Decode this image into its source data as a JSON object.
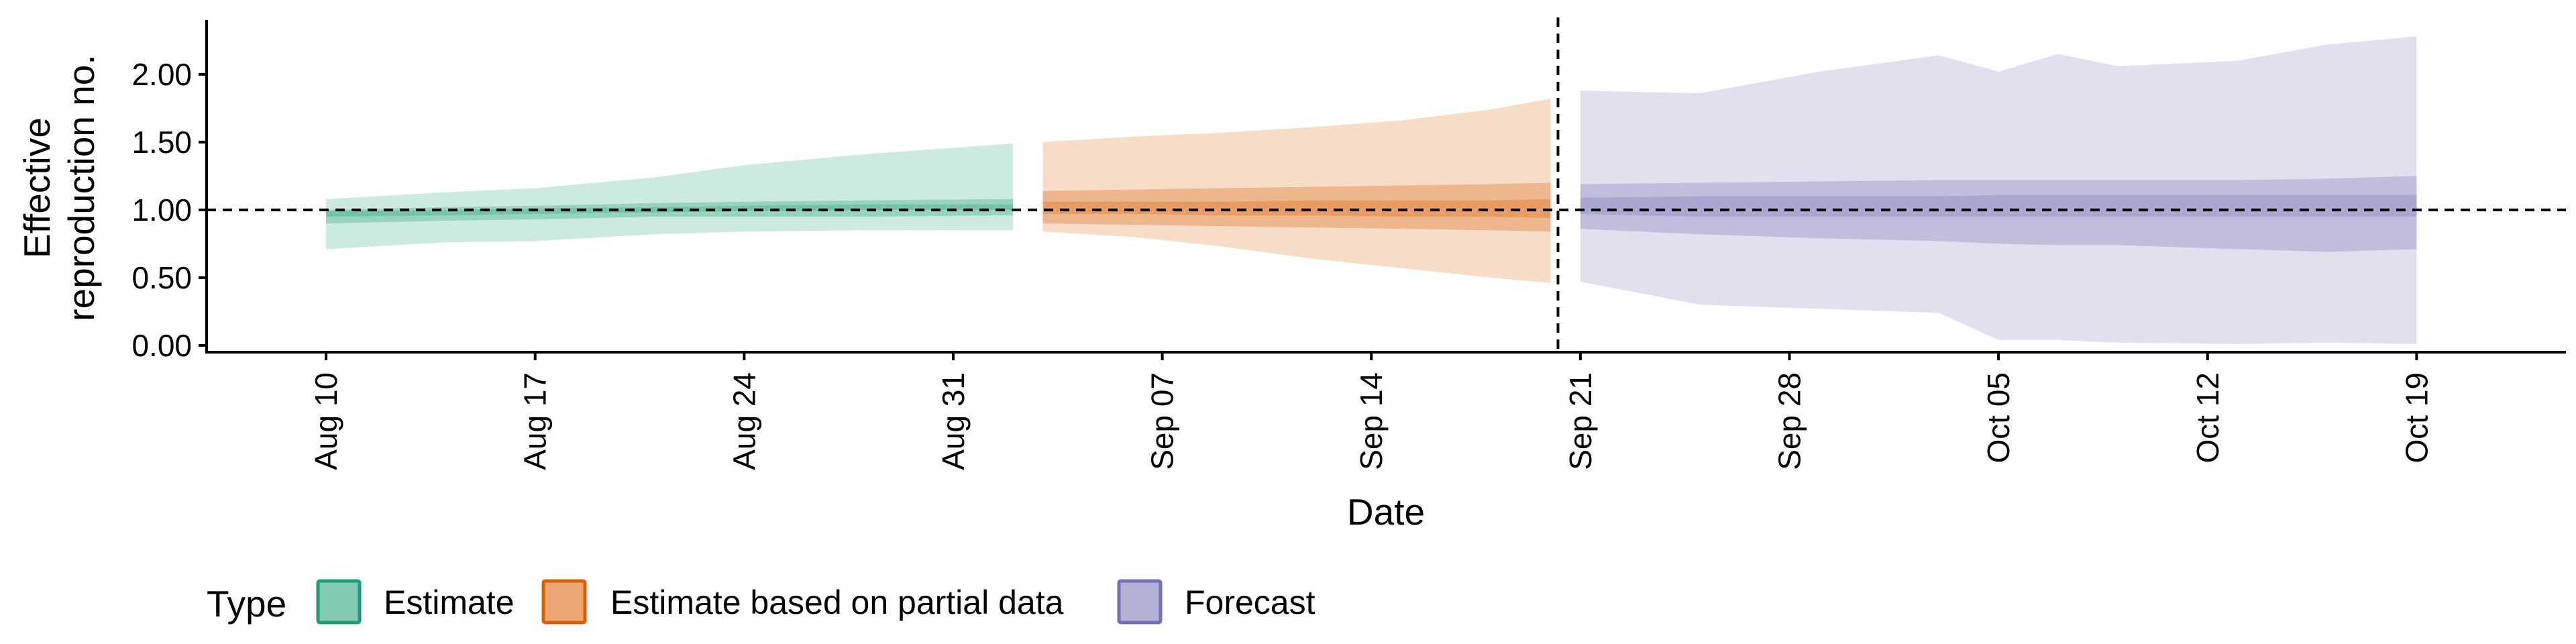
{
  "chart_data": {
    "type": "area",
    "xlabel": "Date",
    "ylabel_lines": [
      "Effective",
      "reproduction no."
    ],
    "ylim": [
      -0.05,
      2.4
    ],
    "y_ticks": [
      0.0,
      0.5,
      1.0,
      1.5,
      2.0
    ],
    "y_tick_labels": [
      "0.00",
      "0.50",
      "1.00",
      "1.50",
      "2.00"
    ],
    "x_range": [
      "2020-08-06",
      "2020-10-24"
    ],
    "x_ticks": [
      "2020-08-10",
      "2020-08-17",
      "2020-08-24",
      "2020-08-31",
      "2020-09-07",
      "2020-09-14",
      "2020-09-21",
      "2020-09-28",
      "2020-10-05",
      "2020-10-12",
      "2020-10-19"
    ],
    "x_tick_labels": [
      "Aug 10",
      "Aug 17",
      "Aug 24",
      "Aug 31",
      "Sep 07",
      "Sep 14",
      "Sep 21",
      "Sep 28",
      "Oct 05",
      "Oct 12",
      "Oct 19"
    ],
    "reference_line_y": 1.0,
    "forecast_start_line": "2020-09-20",
    "legend": {
      "title": "Type",
      "position": "bottom",
      "items": [
        {
          "label": "Estimate",
          "color": "#1b9e77"
        },
        {
          "label": "Estimate based on partial data",
          "color": "#d95f02"
        },
        {
          "label": "Forecast",
          "color": "#7570b3"
        }
      ]
    },
    "series": [
      {
        "name": "Estimate",
        "color": "#1b9e77",
        "x": [
          "2020-08-10",
          "2020-08-14",
          "2020-08-17",
          "2020-08-21",
          "2020-08-24",
          "2020-08-28",
          "2020-09-02"
        ],
        "lower90": [
          0.71,
          0.76,
          0.77,
          0.82,
          0.84,
          0.85,
          0.85
        ],
        "upper90": [
          1.08,
          1.13,
          1.16,
          1.24,
          1.33,
          1.41,
          1.49
        ],
        "lower50": [
          0.9,
          0.92,
          0.93,
          0.95,
          0.95,
          0.95,
          0.96
        ],
        "upper50": [
          1.0,
          1.02,
          1.03,
          1.05,
          1.06,
          1.07,
          1.08
        ],
        "lower20": [
          0.95,
          0.96,
          0.97,
          0.98,
          0.99,
          1.0,
          1.0
        ],
        "upper20": [
          0.99,
          1.0,
          1.01,
          1.02,
          1.03,
          1.04,
          1.04
        ]
      },
      {
        "name": "Estimate based on partial data",
        "color": "#d95f02",
        "x": [
          "2020-09-03",
          "2020-09-06",
          "2020-09-09",
          "2020-09-12",
          "2020-09-15",
          "2020-09-18",
          "2020-09-20"
        ],
        "lower90": [
          0.84,
          0.8,
          0.73,
          0.64,
          0.57,
          0.5,
          0.46
        ],
        "upper90": [
          1.5,
          1.54,
          1.57,
          1.61,
          1.66,
          1.74,
          1.82
        ],
        "lower50": [
          0.9,
          0.89,
          0.88,
          0.87,
          0.86,
          0.85,
          0.84
        ],
        "upper50": [
          1.14,
          1.15,
          1.16,
          1.17,
          1.18,
          1.19,
          1.2
        ],
        "lower20": [
          0.97,
          0.97,
          0.96,
          0.96,
          0.95,
          0.95,
          0.94
        ],
        "upper20": [
          1.06,
          1.06,
          1.06,
          1.07,
          1.07,
          1.07,
          1.08
        ]
      },
      {
        "name": "Forecast",
        "color": "#7570b3",
        "x": [
          "2020-09-21",
          "2020-09-25",
          "2020-09-29",
          "2020-10-03",
          "2020-10-05",
          "2020-10-07",
          "2020-10-09",
          "2020-10-13",
          "2020-10-16",
          "2020-10-19"
        ],
        "lower90": [
          0.47,
          0.3,
          0.27,
          0.24,
          0.04,
          0.04,
          0.02,
          0.01,
          0.02,
          0.01
        ],
        "upper90": [
          1.88,
          1.86,
          2.02,
          2.14,
          2.02,
          2.15,
          2.06,
          2.1,
          2.22,
          2.28
        ],
        "lower50": [
          0.86,
          0.82,
          0.79,
          0.77,
          0.75,
          0.74,
          0.74,
          0.71,
          0.69,
          0.71
        ],
        "upper50": [
          1.19,
          1.2,
          1.21,
          1.22,
          1.22,
          1.22,
          1.22,
          1.22,
          1.23,
          1.25
        ],
        "lower20": [
          0.97,
          0.95,
          0.95,
          0.95,
          0.95,
          0.95,
          0.95,
          0.95,
          0.95,
          0.95
        ],
        "upper20": [
          1.09,
          1.1,
          1.1,
          1.1,
          1.11,
          1.11,
          1.11,
          1.11,
          1.11,
          1.11
        ]
      }
    ]
  }
}
